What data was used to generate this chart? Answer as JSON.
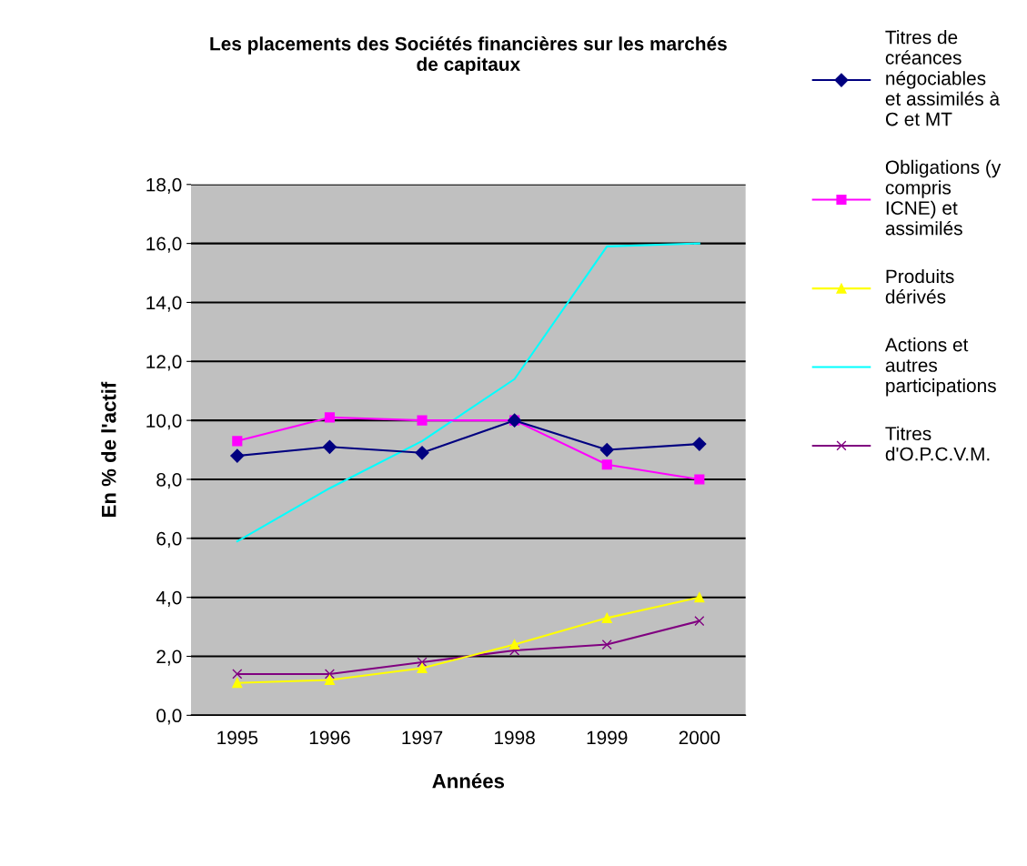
{
  "chart_data": {
    "type": "line",
    "title": "Les placements des Sociétés financières sur les marchés\nde capitaux",
    "xlabel": "Années",
    "ylabel": "En % de l'actif",
    "categories": [
      "1995",
      "1996",
      "1997",
      "1998",
      "1999",
      "2000"
    ],
    "series": [
      {
        "name": "Titres de\ncréances\nnégociables\net assimilés à\nC et MT",
        "color": "#000080",
        "marker": "diamond",
        "values": [
          8.8,
          9.1,
          8.9,
          10.0,
          9.0,
          9.2
        ]
      },
      {
        "name": "Obligations (y\ncompris\nICNE) et\nassimilés",
        "color": "#ff00ff",
        "marker": "square",
        "values": [
          9.3,
          10.1,
          10.0,
          10.0,
          8.5,
          8.0
        ]
      },
      {
        "name": "Produits\ndérivés",
        "color": "#ffff00",
        "marker": "triangle",
        "values": [
          1.1,
          1.2,
          1.6,
          2.4,
          3.3,
          4.0
        ]
      },
      {
        "name": "Actions et\nautres\nparticipations",
        "color": "#00ffff",
        "marker": "none",
        "values": [
          5.9,
          7.7,
          9.3,
          11.4,
          15.9,
          16.0
        ]
      },
      {
        "name": "Titres\nd'O.P.C.V.M.",
        "color": "#800080",
        "marker": "cross",
        "values": [
          1.4,
          1.4,
          1.8,
          2.2,
          2.4,
          3.2
        ]
      }
    ],
    "ylim": [
      0,
      18
    ],
    "yticks": [
      {
        "value": 0,
        "label": "0,0"
      },
      {
        "value": 2,
        "label": "2,0"
      },
      {
        "value": 4,
        "label": "4,0"
      },
      {
        "value": 6,
        "label": "6,0"
      },
      {
        "value": 8,
        "label": "8,0"
      },
      {
        "value": 10,
        "label": "10,0"
      },
      {
        "value": 12,
        "label": "12,0"
      },
      {
        "value": 14,
        "label": "14,0"
      },
      {
        "value": 16,
        "label": "16,0"
      },
      {
        "value": 18,
        "label": "18,0"
      }
    ],
    "grid": "y",
    "legend": "right"
  }
}
